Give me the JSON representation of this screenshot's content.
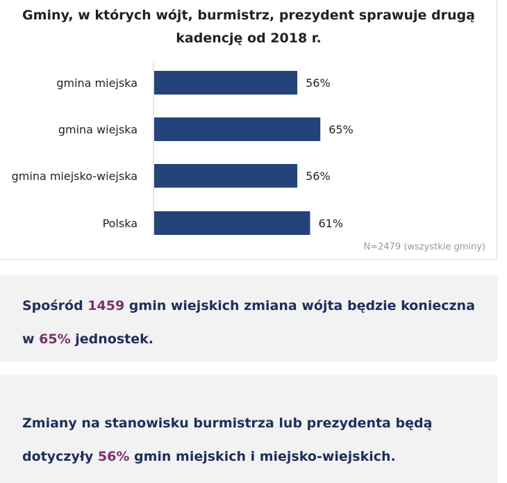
{
  "chart_data": {
    "type": "bar",
    "orientation": "horizontal",
    "title": "Gminy, w których wójt, burmistrz, prezydent sprawuje drugą kadencję od 2018 r.",
    "categories": [
      "gmina miejska",
      "gmina wiejska",
      "gmina miejsko-wiejska",
      "Polska"
    ],
    "values": [
      56,
      65,
      56,
      61
    ],
    "value_labels": [
      "56%",
      "65%",
      "56%",
      "61%"
    ],
    "xlim": [
      0,
      100
    ],
    "grid": false,
    "bar_color": "#23437a",
    "note": "N=2479 (wszystkie gminy)"
  },
  "callouts": {
    "first": {
      "part1": "Spośród ",
      "num1": "1459",
      "part2": " gmin wiejskich zmiana wójta będzie konieczna",
      "part3": "w ",
      "num2": "65%",
      "part4": " jednostek."
    },
    "second": {
      "part1": "Zmiany na stanowisku burmistrza lub prezydenta będą",
      "part2": "dotyczyły ",
      "num1": "56%",
      "part3": " gmin miejskich i miejsko-wiejskich."
    },
    "highlight_color": "#7d2f6e",
    "text_color": "#1f2d5c"
  }
}
